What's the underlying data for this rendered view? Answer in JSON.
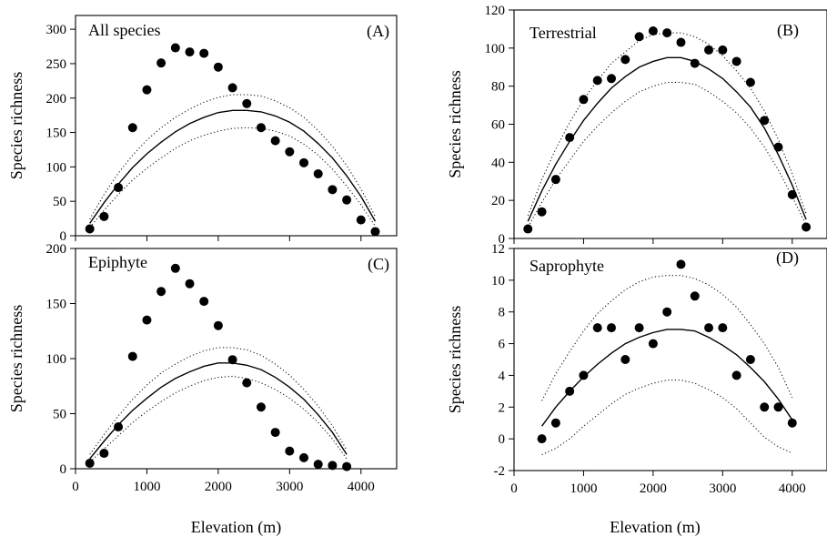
{
  "figure": {
    "xlabel": "Elevation (m)",
    "ylabel": "Species richness"
  },
  "chart_data": [
    {
      "type": "scatter",
      "panel": "A",
      "title": "All species",
      "tag": "(A)",
      "xlabel": "",
      "ylabel": "Species richness",
      "xlim": [
        0,
        4500
      ],
      "ylim": [
        0,
        320
      ],
      "xticks": [
        0,
        1000,
        2000,
        3000,
        4000
      ],
      "xtick_labels": [
        "",
        "",
        "",
        "",
        ""
      ],
      "yticks": [
        0,
        50,
        100,
        150,
        200,
        250,
        300
      ],
      "ytick_labels": [
        "0",
        "50",
        "100",
        "150",
        "200",
        "250",
        "300"
      ],
      "observed": {
        "x": [
          200,
          400,
          600,
          800,
          1000,
          1200,
          1400,
          1600,
          1800,
          2000,
          2200,
          2400,
          2600,
          2800,
          3000,
          3200,
          3400,
          3600,
          3800,
          4000,
          4200
        ],
        "y": [
          10,
          28,
          70,
          157,
          212,
          251,
          273,
          267,
          265,
          245,
          215,
          192,
          157,
          138,
          122,
          106,
          90,
          67,
          52,
          23,
          6
        ]
      },
      "mde_mean": {
        "x": [
          200,
          400,
          600,
          800,
          1000,
          1200,
          1400,
          1600,
          1800,
          2000,
          2200,
          2400,
          2600,
          2800,
          3000,
          3200,
          3400,
          3600,
          3800,
          4000,
          4200
        ],
        "y": [
          18,
          48,
          75,
          99,
          119,
          136,
          151,
          163,
          172,
          179,
          182,
          182,
          180,
          174,
          165,
          152,
          134,
          113,
          87,
          57,
          21
        ]
      },
      "mde_upper": {
        "x": [
          200,
          400,
          600,
          800,
          1000,
          1200,
          1400,
          1600,
          1800,
          2000,
          2200,
          2400,
          2600,
          2800,
          3000,
          3200,
          3400,
          3600,
          3800,
          4000,
          4200
        ],
        "y": [
          24,
          60,
          91,
          117,
          139,
          157,
          172,
          184,
          194,
          201,
          205,
          205,
          203,
          196,
          186,
          172,
          153,
          130,
          102,
          68,
          28
        ]
      },
      "mde_lower": {
        "x": [
          200,
          400,
          600,
          800,
          1000,
          1200,
          1400,
          1600,
          1800,
          2000,
          2200,
          2400,
          2600,
          2800,
          3000,
          3200,
          3400,
          3600,
          3800,
          4000,
          4200
        ],
        "y": [
          12,
          37,
          60,
          81,
          98,
          113,
          127,
          138,
          146,
          152,
          156,
          157,
          156,
          152,
          145,
          133,
          117,
          97,
          72,
          45,
          14
        ]
      }
    },
    {
      "type": "scatter",
      "panel": "B",
      "title": "Terrestrial",
      "tag": "(B)",
      "xlabel": "",
      "ylabel": "Species richness",
      "xlim": [
        0,
        4500
      ],
      "ylim": [
        0,
        120
      ],
      "xticks": [
        0,
        1000,
        2000,
        3000,
        4000
      ],
      "xtick_labels": [
        "",
        "",
        "",
        "",
        ""
      ],
      "yticks": [
        0,
        20,
        40,
        60,
        80,
        100,
        120
      ],
      "ytick_labels": [
        "0",
        "20",
        "40",
        "60",
        "80",
        "100",
        "120"
      ],
      "observed": {
        "x": [
          200,
          400,
          600,
          800,
          1000,
          1200,
          1400,
          1600,
          1800,
          2000,
          2200,
          2400,
          2600,
          2800,
          3000,
          3200,
          3400,
          3600,
          3800,
          4000,
          4200
        ],
        "y": [
          5,
          14,
          31,
          53,
          73,
          83,
          84,
          94,
          106,
          109,
          108,
          103,
          92,
          99,
          99,
          93,
          82,
          62,
          48,
          23,
          6
        ]
      },
      "mde_mean": {
        "x": [
          200,
          400,
          600,
          800,
          1000,
          1200,
          1400,
          1600,
          1800,
          2000,
          2200,
          2400,
          2600,
          2800,
          3000,
          3200,
          3400,
          3600,
          3800,
          4000,
          4200
        ],
        "y": [
          9,
          25,
          39,
          51,
          62,
          71,
          79,
          85,
          90,
          93,
          95,
          95,
          93,
          89,
          84,
          77,
          69,
          58,
          44,
          28,
          10
        ]
      },
      "mde_upper": {
        "x": [
          200,
          400,
          600,
          800,
          1000,
          1200,
          1400,
          1600,
          1800,
          2000,
          2200,
          2400,
          2600,
          2800,
          3000,
          3200,
          3400,
          3600,
          3800,
          4000,
          4200
        ],
        "y": [
          12,
          31,
          47,
          61,
          73,
          83,
          92,
          98,
          104,
          107,
          108,
          108,
          106,
          102,
          96,
          88,
          79,
          67,
          52,
          34,
          13
        ]
      },
      "mde_lower": {
        "x": [
          200,
          400,
          600,
          800,
          1000,
          1200,
          1400,
          1600,
          1800,
          2000,
          2200,
          2400,
          2600,
          2800,
          3000,
          3200,
          3400,
          3600,
          3800,
          4000,
          4200
        ],
        "y": [
          6,
          19,
          31,
          41,
          51,
          59,
          66,
          72,
          77,
          80,
          82,
          82,
          81,
          77,
          72,
          66,
          58,
          48,
          36,
          22,
          7
        ]
      }
    },
    {
      "type": "scatter",
      "panel": "C",
      "title": "Epiphyte",
      "tag": "(C)",
      "xlabel": "Elevation (m)",
      "ylabel": "Species richness",
      "xlim": [
        0,
        4500
      ],
      "ylim": [
        0,
        200
      ],
      "xticks": [
        0,
        1000,
        2000,
        3000,
        4000
      ],
      "xtick_labels": [
        "0",
        "1000",
        "2000",
        "3000",
        "4000"
      ],
      "yticks": [
        0,
        50,
        100,
        150,
        200
      ],
      "ytick_labels": [
        "0",
        "50",
        "100",
        "150",
        "200"
      ],
      "observed": {
        "x": [
          200,
          400,
          600,
          800,
          1000,
          1200,
          1400,
          1600,
          1800,
          2000,
          2200,
          2400,
          2600,
          2800,
          3000,
          3200,
          3400,
          3600,
          3800
        ],
        "y": [
          5,
          14,
          38,
          102,
          135,
          161,
          182,
          168,
          152,
          130,
          99,
          78,
          56,
          33,
          16,
          10,
          4,
          3,
          2
        ]
      },
      "mde_mean": {
        "x": [
          200,
          400,
          600,
          800,
          1000,
          1200,
          1400,
          1600,
          1800,
          2000,
          2200,
          2400,
          2600,
          2800,
          3000,
          3200,
          3400,
          3600,
          3800
        ],
        "y": [
          9,
          25,
          40,
          53,
          64,
          74,
          82,
          88,
          93,
          96,
          96,
          94,
          90,
          83,
          74,
          63,
          49,
          33,
          13
        ]
      },
      "mde_upper": {
        "x": [
          200,
          400,
          600,
          800,
          1000,
          1200,
          1400,
          1600,
          1800,
          2000,
          2200,
          2400,
          2600,
          2800,
          3000,
          3200,
          3400,
          3600,
          3800
        ],
        "y": [
          13,
          31,
          48,
          63,
          76,
          87,
          95,
          102,
          107,
          110,
          110,
          108,
          103,
          95,
          85,
          72,
          57,
          39,
          17
        ]
      },
      "mde_lower": {
        "x": [
          200,
          400,
          600,
          800,
          1000,
          1200,
          1400,
          1600,
          1800,
          2000,
          2200,
          2400,
          2600,
          2800,
          3000,
          3200,
          3400,
          3600,
          3800
        ],
        "y": [
          6,
          18,
          30,
          42,
          52,
          61,
          69,
          75,
          80,
          83,
          84,
          82,
          78,
          72,
          64,
          54,
          42,
          27,
          9
        ]
      }
    },
    {
      "type": "scatter",
      "panel": "D",
      "title": "Saprophyte",
      "tag": "(D)",
      "xlabel": "Elevation (m)",
      "ylabel": "Species richness",
      "xlim": [
        0,
        4500
      ],
      "ylim": [
        -2,
        12
      ],
      "xticks": [
        0,
        1000,
        2000,
        3000,
        4000
      ],
      "xtick_labels": [
        "0",
        "1000",
        "2000",
        "3000",
        "4000"
      ],
      "yticks": [
        -2,
        0,
        2,
        4,
        6,
        8,
        10,
        12
      ],
      "ytick_labels": [
        "-2",
        "0",
        "2",
        "4",
        "6",
        "8",
        "10",
        "12"
      ],
      "observed": {
        "x": [
          400,
          600,
          800,
          1000,
          1200,
          1400,
          1600,
          1800,
          2000,
          2200,
          2400,
          2600,
          2800,
          3000,
          3200,
          3400,
          3600,
          3800,
          4000
        ],
        "y": [
          0,
          1,
          3,
          4,
          7,
          7,
          5,
          7,
          6,
          8,
          11,
          9,
          7,
          7,
          4,
          5,
          2,
          2,
          1
        ]
      },
      "mde_mean": {
        "x": [
          400,
          600,
          800,
          1000,
          1200,
          1400,
          1600,
          1800,
          2000,
          2200,
          2400,
          2600,
          2800,
          3000,
          3200,
          3400,
          3600,
          3800,
          4000
        ],
        "y": [
          0.8,
          2.0,
          3.0,
          3.9,
          4.7,
          5.4,
          6.0,
          6.4,
          6.7,
          6.9,
          6.9,
          6.8,
          6.4,
          5.9,
          5.3,
          4.5,
          3.6,
          2.5,
          1.2
        ]
      },
      "mde_upper": {
        "x": [
          400,
          600,
          800,
          1000,
          1200,
          1400,
          1600,
          1800,
          2000,
          2200,
          2400,
          2600,
          2800,
          3000,
          3200,
          3400,
          3600,
          3800,
          4000
        ],
        "y": [
          2.4,
          4.1,
          5.5,
          6.8,
          7.9,
          8.7,
          9.4,
          9.9,
          10.2,
          10.3,
          10.3,
          10.1,
          9.7,
          9.1,
          8.3,
          7.2,
          6.0,
          4.5,
          2.6
        ]
      },
      "mde_lower": {
        "x": [
          400,
          600,
          800,
          1000,
          1200,
          1400,
          1600,
          1800,
          2000,
          2200,
          2400,
          2600,
          2800,
          3000,
          3200,
          3400,
          3600,
          3800,
          4000
        ],
        "y": [
          -1.0,
          -0.6,
          0.0,
          0.8,
          1.5,
          2.2,
          2.8,
          3.2,
          3.5,
          3.7,
          3.7,
          3.5,
          3.1,
          2.6,
          1.9,
          1.0,
          0.1,
          -0.5,
          -0.9
        ]
      }
    }
  ]
}
